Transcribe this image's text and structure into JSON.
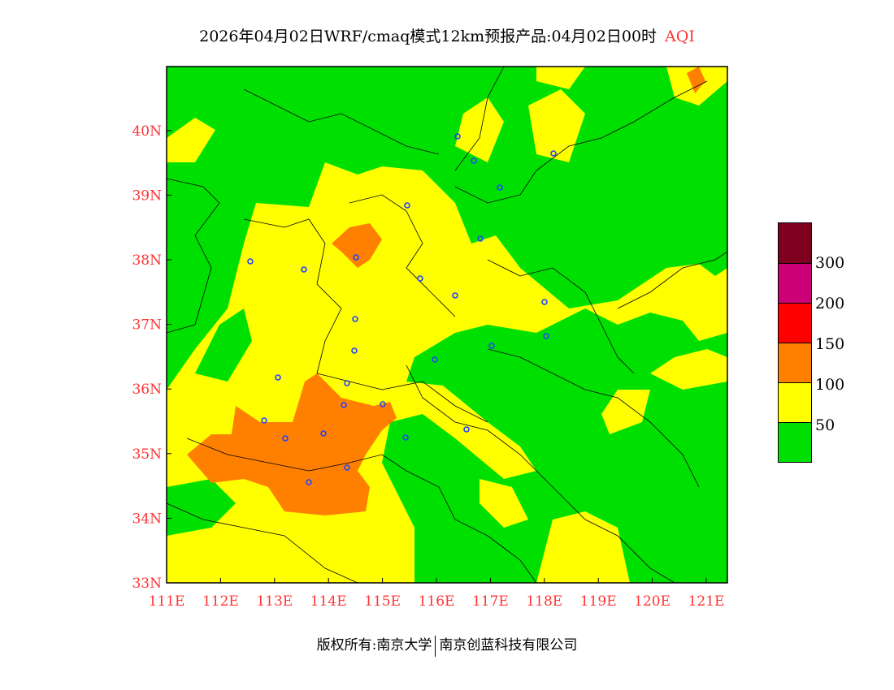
{
  "title": {
    "text": "2026年04月02日WRF/cmaq模式12km预报产品:04月02日00时",
    "variable": "AQI"
  },
  "axes": {
    "lon_ticks": [
      "111E",
      "112E",
      "113E",
      "114E",
      "115E",
      "116E",
      "117E",
      "118E",
      "119E",
      "120E",
      "121E"
    ],
    "lat_ticks": [
      "33N",
      "34N",
      "35N",
      "36N",
      "37N",
      "38N",
      "39N",
      "40N"
    ]
  },
  "legend": {
    "colors": [
      "#800020",
      "#cc0077",
      "#ff0000",
      "#ff8000",
      "#ffff00",
      "#00e000"
    ],
    "labels": [
      "300",
      "200",
      "150",
      "100",
      "50"
    ]
  },
  "footer": {
    "left": "版权所有:南京大学",
    "right": "南京创蓝科技有限公司"
  }
}
